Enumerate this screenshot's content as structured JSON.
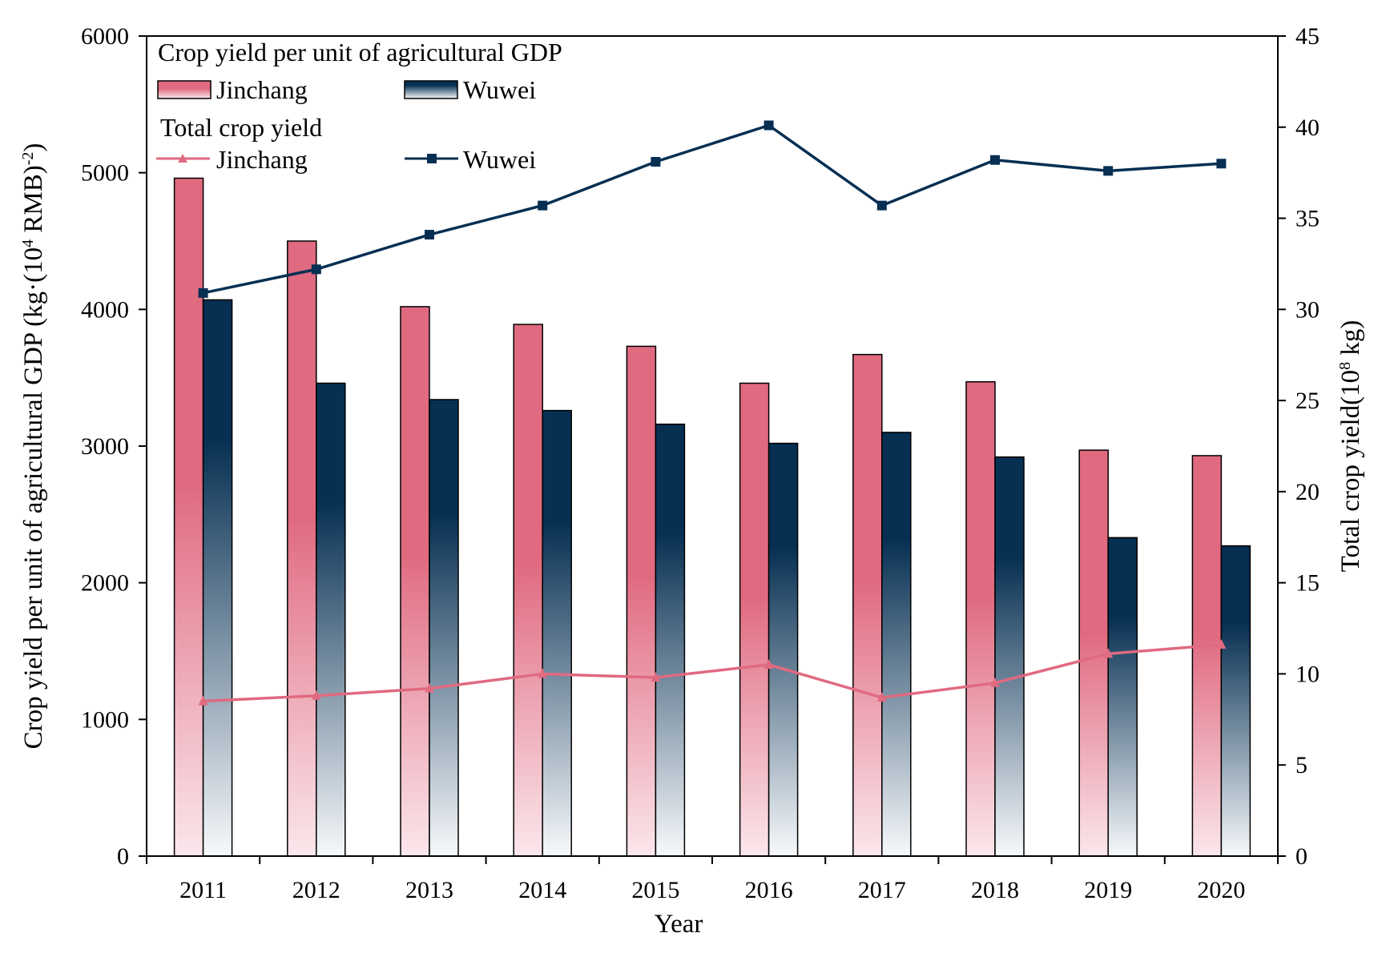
{
  "colors": {
    "jinchang": "#e06a80",
    "wuwei": "#062f52",
    "jinchang_light": "#fbe7ec",
    "wuwei_light": "#f7f9fb"
  },
  "chart_data": {
    "type": "bar",
    "categories": [
      "2011",
      "2012",
      "2013",
      "2014",
      "2015",
      "2016",
      "2017",
      "2018",
      "2019",
      "2020"
    ],
    "xlabel": "Year",
    "ylabel_left_parts": [
      "Crop yield per unit of agricultural GDP (kg·(10",
      "4",
      " RMB)",
      "-2",
      ")"
    ],
    "ylabel_right_parts": [
      "Total crop yield(10",
      "8",
      " kg)"
    ],
    "ylim_left": [
      0,
      6000
    ],
    "yticks_left": [
      0,
      1000,
      2000,
      3000,
      4000,
      5000,
      6000
    ],
    "ylim_right": [
      0,
      45
    ],
    "yticks_right": [
      0,
      5,
      10,
      15,
      20,
      25,
      30,
      35,
      40,
      45
    ],
    "bar_series": [
      {
        "name": "Jinchang",
        "values": [
          4960,
          4500,
          4020,
          3890,
          3730,
          3460,
          3670,
          3470,
          2970,
          2930
        ]
      },
      {
        "name": "Wuwei",
        "values": [
          4070,
          3460,
          3340,
          3260,
          3160,
          3020,
          3100,
          2920,
          2330,
          2270
        ]
      }
    ],
    "line_series": [
      {
        "name": "Jinchang",
        "marker": "triangle",
        "values": [
          8.5,
          8.8,
          9.2,
          10.0,
          9.8,
          10.5,
          8.7,
          9.5,
          11.1,
          11.6
        ]
      },
      {
        "name": "Wuwei",
        "marker": "square",
        "values": [
          30.9,
          32.2,
          34.1,
          35.7,
          38.1,
          40.1,
          35.7,
          38.2,
          37.6,
          38.0
        ]
      }
    ],
    "legend": {
      "position": "top-left",
      "bar_group_title": "Crop yield per unit of agricultural GDP",
      "line_group_title": "Total crop yield"
    },
    "grid": false
  }
}
